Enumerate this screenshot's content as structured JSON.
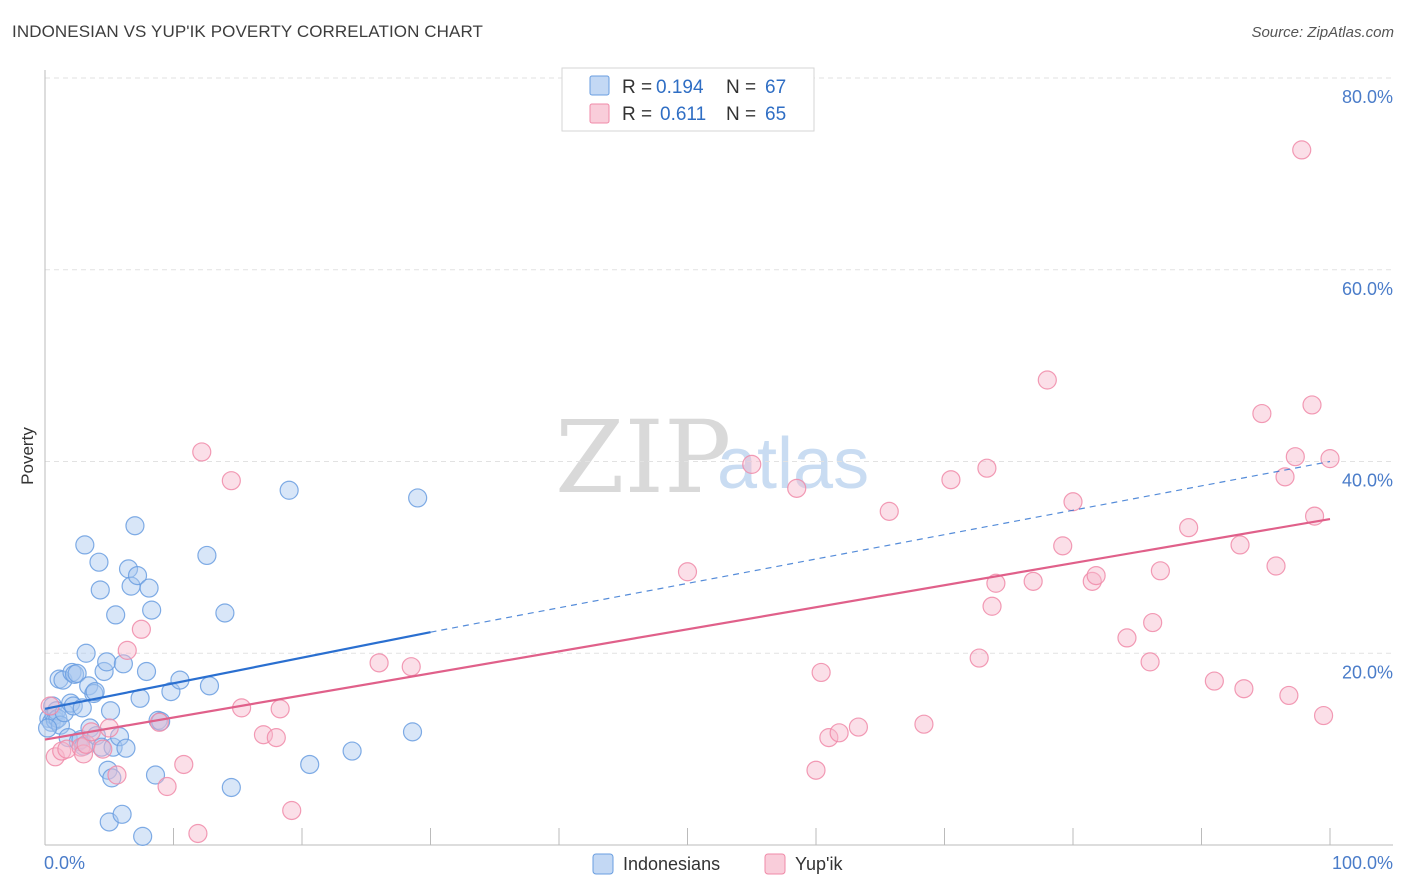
{
  "header": {
    "title": "INDONESIAN VS YUP'IK POVERTY CORRELATION CHART",
    "source": "Source: ZipAtlas.com"
  },
  "watermark": {
    "zip": "ZIP",
    "atlas": "atlas"
  },
  "legend": {
    "rows": [
      {
        "r_label": "R =",
        "r_value": "0.194",
        "n_label": "N =",
        "n_value": "67",
        "color": "#a9c8f0"
      },
      {
        "r_label": "R =",
        "r_value": "0.611",
        "n_label": "N =",
        "n_value": "65",
        "color": "#f7b8cb"
      }
    ]
  },
  "chart_data": {
    "type": "scatter",
    "title": "INDONESIAN VS YUP'IK POVERTY CORRELATION CHART",
    "xlabel": "",
    "ylabel": "Poverty",
    "xlim": [
      0,
      100
    ],
    "ylim": [
      0,
      80
    ],
    "x_tick_labels": [
      "0.0%",
      "100.0%"
    ],
    "y_ticks": [
      20,
      40,
      60,
      80
    ],
    "y_tick_labels": [
      "20.0%",
      "40.0%",
      "60.0%",
      "80.0%"
    ],
    "grid": true,
    "legend_position": "bottom-center",
    "series": [
      {
        "name": "Indonesians",
        "color": "#6a9ee0",
        "fill": "#a9c8f0",
        "trend": {
          "x0": 0,
          "y0": 14.2,
          "x1": 30,
          "y1": 22.2,
          "dashed_to_x": 100,
          "dashed_to_y": 40.0,
          "color": "#2a6fd0"
        },
        "points": [
          [
            0.3,
            13.2
          ],
          [
            0.5,
            12.8
          ],
          [
            0.6,
            14.5
          ],
          [
            0.7,
            13.5
          ],
          [
            0.8,
            13.0
          ],
          [
            0.9,
            14.0
          ],
          [
            1.0,
            13.2
          ],
          [
            1.1,
            17.3
          ],
          [
            1.2,
            12.5
          ],
          [
            1.4,
            17.2
          ],
          [
            1.5,
            13.8
          ],
          [
            1.8,
            11.2
          ],
          [
            2.0,
            14.8
          ],
          [
            2.1,
            18.0
          ],
          [
            2.2,
            14.5
          ],
          [
            2.3,
            17.8
          ],
          [
            2.5,
            17.9
          ],
          [
            2.6,
            10.8
          ],
          [
            2.8,
            11.0
          ],
          [
            2.9,
            14.3
          ],
          [
            3.0,
            10.3
          ],
          [
            3.1,
            31.3
          ],
          [
            3.2,
            20.0
          ],
          [
            3.4,
            16.6
          ],
          [
            3.5,
            12.2
          ],
          [
            3.8,
            15.8
          ],
          [
            3.9,
            16.0
          ],
          [
            4.0,
            11.4
          ],
          [
            4.2,
            29.5
          ],
          [
            4.3,
            26.6
          ],
          [
            4.4,
            10.2
          ],
          [
            4.6,
            18.1
          ],
          [
            4.8,
            19.1
          ],
          [
            4.9,
            7.8
          ],
          [
            5.0,
            2.4
          ],
          [
            5.1,
            14.0
          ],
          [
            5.2,
            7.0
          ],
          [
            5.3,
            10.2
          ],
          [
            5.5,
            24.0
          ],
          [
            5.8,
            11.3
          ],
          [
            6.0,
            3.2
          ],
          [
            6.1,
            18.9
          ],
          [
            6.3,
            10.1
          ],
          [
            6.5,
            28.8
          ],
          [
            6.7,
            27.0
          ],
          [
            7.0,
            33.3
          ],
          [
            7.2,
            28.1
          ],
          [
            7.4,
            15.3
          ],
          [
            7.6,
            0.9
          ],
          [
            7.9,
            18.1
          ],
          [
            8.1,
            26.8
          ],
          [
            8.3,
            24.5
          ],
          [
            8.6,
            7.3
          ],
          [
            8.8,
            13.0
          ],
          [
            9.0,
            12.9
          ],
          [
            9.8,
            16.0
          ],
          [
            10.5,
            17.2
          ],
          [
            12.6,
            30.2
          ],
          [
            12.8,
            16.6
          ],
          [
            14.0,
            24.2
          ],
          [
            14.5,
            6.0
          ],
          [
            19.0,
            37.0
          ],
          [
            20.6,
            8.4
          ],
          [
            23.9,
            9.8
          ],
          [
            28.6,
            11.8
          ],
          [
            29.0,
            36.2
          ],
          [
            0.2,
            12.2
          ]
        ]
      },
      {
        "name": "Yup'ik",
        "color": "#f08aa8",
        "fill": "#f7b8cb",
        "trend": {
          "x0": 0,
          "y0": 11.0,
          "x1": 100,
          "y1": 34.0,
          "color": "#e0608a"
        },
        "points": [
          [
            0.4,
            14.5
          ],
          [
            0.8,
            9.2
          ],
          [
            1.3,
            9.8
          ],
          [
            1.7,
            10.0
          ],
          [
            2.8,
            10.2
          ],
          [
            3.0,
            9.5
          ],
          [
            3.2,
            10.5
          ],
          [
            3.6,
            11.8
          ],
          [
            4.5,
            10.0
          ],
          [
            5.0,
            12.2
          ],
          [
            5.6,
            7.3
          ],
          [
            6.4,
            20.3
          ],
          [
            7.5,
            22.5
          ],
          [
            8.9,
            12.8
          ],
          [
            9.5,
            6.1
          ],
          [
            10.8,
            8.4
          ],
          [
            11.9,
            1.2
          ],
          [
            12.2,
            41.0
          ],
          [
            14.5,
            38.0
          ],
          [
            15.3,
            14.3
          ],
          [
            17.0,
            11.5
          ],
          [
            18.0,
            11.2
          ],
          [
            18.3,
            14.2
          ],
          [
            19.2,
            3.6
          ],
          [
            26.0,
            19.0
          ],
          [
            28.5,
            18.6
          ],
          [
            50.0,
            28.5
          ],
          [
            55.0,
            39.7
          ],
          [
            58.5,
            37.2
          ],
          [
            60.0,
            7.8
          ],
          [
            60.4,
            18.0
          ],
          [
            61.0,
            11.2
          ],
          [
            61.8,
            11.7
          ],
          [
            63.3,
            12.3
          ],
          [
            65.7,
            34.8
          ],
          [
            68.4,
            12.6
          ],
          [
            70.5,
            38.1
          ],
          [
            72.7,
            19.5
          ],
          [
            73.3,
            39.3
          ],
          [
            73.7,
            24.9
          ],
          [
            74.0,
            27.3
          ],
          [
            76.9,
            27.5
          ],
          [
            78.0,
            48.5
          ],
          [
            79.2,
            31.2
          ],
          [
            80.0,
            35.8
          ],
          [
            81.5,
            27.5
          ],
          [
            81.8,
            28.1
          ],
          [
            84.2,
            21.6
          ],
          [
            86.0,
            19.1
          ],
          [
            86.2,
            23.2
          ],
          [
            86.8,
            28.6
          ],
          [
            89.0,
            33.1
          ],
          [
            91.0,
            17.1
          ],
          [
            93.0,
            31.3
          ],
          [
            93.3,
            16.3
          ],
          [
            94.7,
            45.0
          ],
          [
            95.8,
            29.1
          ],
          [
            96.5,
            38.4
          ],
          [
            96.8,
            15.6
          ],
          [
            97.3,
            40.5
          ],
          [
            97.8,
            72.5
          ],
          [
            98.6,
            45.9
          ],
          [
            98.8,
            34.3
          ],
          [
            99.5,
            13.5
          ],
          [
            100.0,
            40.3
          ]
        ]
      }
    ]
  }
}
